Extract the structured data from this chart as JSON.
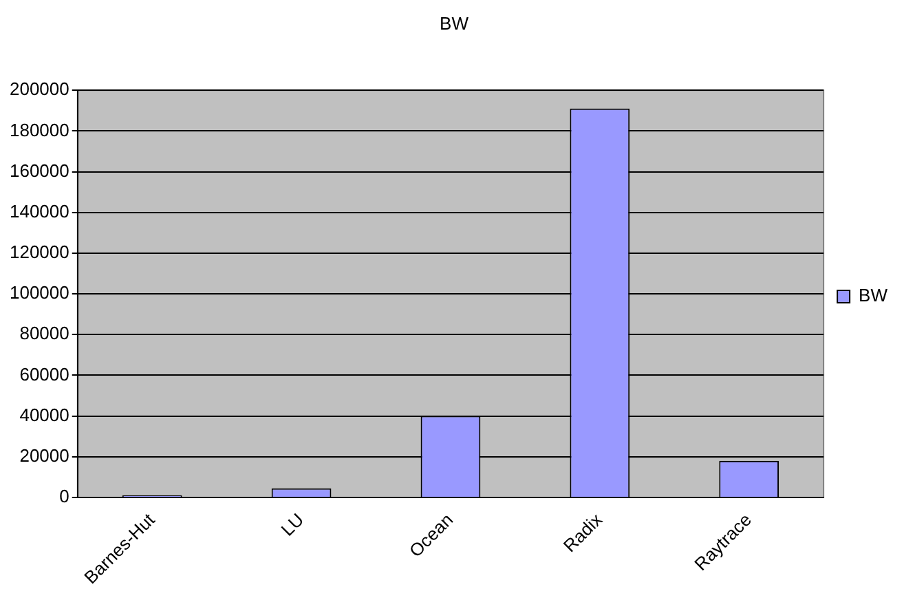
{
  "chart_data": {
    "type": "bar",
    "title": "BW",
    "categories": [
      "Barnes-Hut",
      "LU",
      "Ocean",
      "Radix",
      "Raytrace"
    ],
    "series": [
      {
        "name": "BW",
        "color": "#9999ff",
        "values": [
          1000,
          4500,
          40000,
          191000,
          18000
        ]
      }
    ],
    "ylim": [
      0,
      200000
    ],
    "yticks": [
      0,
      20000,
      40000,
      60000,
      80000,
      100000,
      120000,
      140000,
      160000,
      180000,
      200000
    ],
    "grid": "y",
    "legend": "right"
  }
}
